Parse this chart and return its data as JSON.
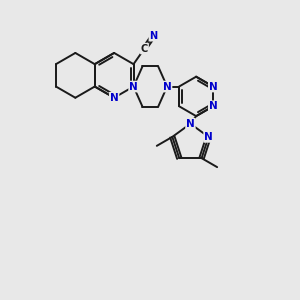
{
  "bg": "#e8e8e8",
  "bc": "#1a1a1a",
  "ac": "#0000cc",
  "lw": 1.4,
  "fs": 7.5,
  "figsize": [
    3.0,
    3.0
  ],
  "dpi": 100,
  "xlim": [
    -0.5,
    9.5
  ],
  "ylim": [
    -0.5,
    9.5
  ]
}
